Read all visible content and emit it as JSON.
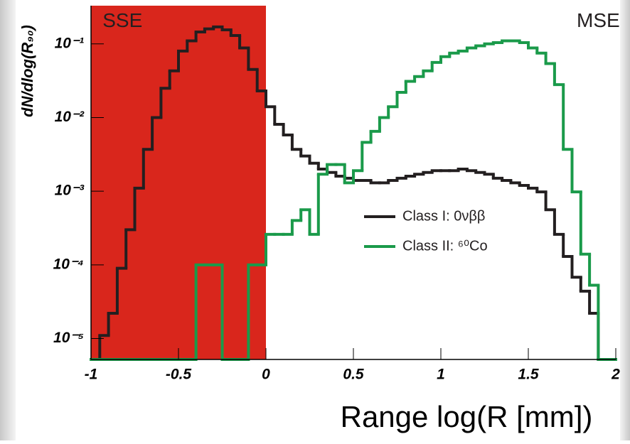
{
  "chart_data": {
    "type": "histogram",
    "log_y": true,
    "x_label": "Range log(R [mm])",
    "y_label": "dN/dlog(R₉₀)",
    "bins": [
      -1,
      -0.95,
      -0.9,
      -0.85,
      -0.8,
      -0.75,
      -0.7,
      -0.65,
      -0.6,
      -0.55,
      -0.5,
      -0.45,
      -0.4,
      -0.35,
      -0.3,
      -0.25,
      -0.2,
      -0.15,
      -0.1,
      -0.05,
      0,
      0.05,
      0.1,
      0.15,
      0.2,
      0.25,
      0.3,
      0.35,
      0.4,
      0.45,
      0.5,
      0.55,
      0.6,
      0.65,
      0.7,
      0.75,
      0.8,
      0.85,
      0.9,
      0.95,
      1,
      1.05,
      1.1,
      1.15,
      1.2,
      1.25,
      1.3,
      1.35,
      1.4,
      1.45,
      1.5,
      1.55,
      1.6,
      1.65,
      1.7,
      1.75,
      1.8,
      1.85,
      1.9,
      1.95,
      2
    ],
    "series": [
      {
        "name": "Class I: 0νββ",
        "color": "#231f20",
        "values": [
          null,
          1.1e-05,
          2.2e-05,
          9e-05,
          0.0003,
          0.0011,
          0.0037,
          0.01,
          0.025,
          0.043,
          0.08,
          0.11,
          0.145,
          0.16,
          0.17,
          0.155,
          0.13,
          0.088,
          0.045,
          0.023,
          0.014,
          0.0081,
          0.0058,
          0.0037,
          0.003,
          0.0024,
          0.002,
          0.0018,
          0.0016,
          0.0015,
          0.0014,
          0.0014,
          0.0013,
          0.0013,
          0.0014,
          0.0015,
          0.0016,
          0.0017,
          0.0018,
          0.0019,
          0.0019,
          0.0019,
          0.002,
          0.0019,
          0.0018,
          0.0017,
          0.0015,
          0.0014,
          0.0013,
          0.0012,
          0.0011,
          0.00098,
          0.00056,
          0.00026,
          0.00013,
          6.8e-05,
          4.4e-05,
          2.2e-05,
          null,
          null
        ]
      },
      {
        "name": "Class II: ⁶⁰Co",
        "color": "#1a9a4a",
        "values": [
          null,
          null,
          null,
          null,
          null,
          null,
          null,
          null,
          null,
          null,
          null,
          null,
          0.0001,
          0.0001,
          0.0001,
          null,
          null,
          null,
          0.0001,
          0.0001,
          0.00026,
          0.00026,
          0.00026,
          0.0004,
          0.00056,
          0.00026,
          0.0017,
          0.0023,
          0.0023,
          0.0013,
          0.0019,
          0.0046,
          0.0065,
          0.01,
          0.014,
          0.022,
          0.031,
          0.036,
          0.043,
          0.056,
          0.067,
          0.075,
          0.08,
          0.088,
          0.094,
          0.1,
          0.104,
          0.11,
          0.11,
          0.104,
          0.088,
          0.075,
          0.054,
          0.028,
          0.0037,
          0.00098,
          0.00014,
          5.3e-05,
          null,
          null
        ]
      }
    ],
    "xlim": [
      -1,
      2
    ],
    "xticks": [
      -1,
      -0.5,
      0,
      0.5,
      1,
      1.5,
      2
    ],
    "ylim": [
      5.2e-06,
      0.33
    ],
    "yticks": [
      {
        "value": 1e-05,
        "label": "10⁻⁵"
      },
      {
        "value": 0.0001,
        "label": "10⁻⁴"
      },
      {
        "value": 0.001,
        "label": "10⁻³"
      },
      {
        "value": 0.01,
        "label": "10⁻²"
      },
      {
        "value": 0.1,
        "label": "10⁻¹"
      }
    ],
    "shaded_region": {
      "xrange": [
        -1,
        0
      ],
      "color": "#d9261c"
    },
    "annotations": [
      {
        "text": "SSE",
        "x": -0.82,
        "y": 0.2
      },
      {
        "text": "MSE",
        "x": 1.9,
        "y": 0.2
      }
    ],
    "legend": "center-right"
  }
}
